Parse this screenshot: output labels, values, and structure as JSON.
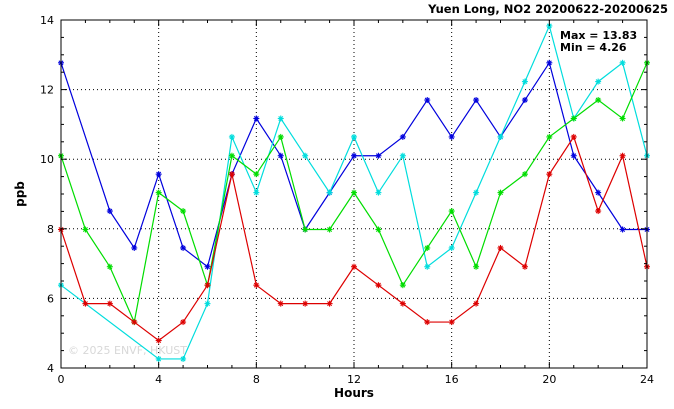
{
  "chart_data": {
    "type": "line",
    "title": "Yuen Long, NO2 20200622-20200625",
    "xlabel": "Hours",
    "ylabel": "ppb",
    "xlim": [
      0,
      24
    ],
    "ylim": [
      4,
      14
    ],
    "xticks": [
      0,
      4,
      8,
      12,
      16,
      20,
      24
    ],
    "yticks": [
      4,
      6,
      8,
      10,
      12,
      14
    ],
    "grid": "dotted",
    "x": [
      0,
      1,
      2,
      3,
      4,
      5,
      6,
      7,
      8,
      9,
      10,
      11,
      12,
      13,
      14,
      15,
      16,
      17,
      18,
      19,
      20,
      21,
      22,
      23,
      24
    ],
    "max_label": "Max = 13.83",
    "min_label": "Min =  4.26",
    "watermark": "© 2025  ENVF, HKUST",
    "series": [
      {
        "color": "#0000dd",
        "values": [
          12.77,
          null,
          8.51,
          7.45,
          9.57,
          7.45,
          6.91,
          9.57,
          11.17,
          10.1,
          7.98,
          9.04,
          10.1,
          10.1,
          10.64,
          11.7,
          10.64,
          11.7,
          10.64,
          11.7,
          12.77,
          10.1,
          9.04,
          7.98,
          7.98
        ]
      },
      {
        "color": "#00dddd",
        "values": [
          6.38,
          null,
          null,
          null,
          4.26,
          4.26,
          5.85,
          10.64,
          9.04,
          11.17,
          10.1,
          9.04,
          10.64,
          9.04,
          10.1,
          6.91,
          7.45,
          9.04,
          10.64,
          12.23,
          13.83,
          11.17,
          12.23,
          12.77,
          10.1
        ]
      },
      {
        "color": "#00dd00",
        "values": [
          10.1,
          7.98,
          6.91,
          5.32,
          9.04,
          8.51,
          6.38,
          10.1,
          9.57,
          10.64,
          7.98,
          7.98,
          9.04,
          7.98,
          6.38,
          7.45,
          8.51,
          6.91,
          9.04,
          9.57,
          10.64,
          11.17,
          11.7,
          11.17,
          12.77
        ]
      },
      {
        "color": "#dd0000",
        "values": [
          7.98,
          5.85,
          5.85,
          5.32,
          4.79,
          5.32,
          6.38,
          9.57,
          6.38,
          5.85,
          5.85,
          5.85,
          6.91,
          6.38,
          5.85,
          5.32,
          5.32,
          5.85,
          7.45,
          6.91,
          9.57,
          10.64,
          8.51,
          10.1,
          6.91
        ]
      }
    ]
  }
}
